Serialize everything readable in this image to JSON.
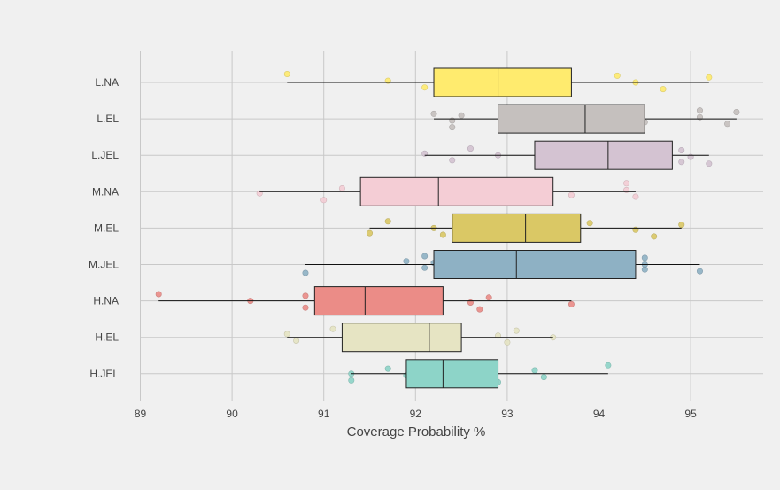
{
  "chart_data": {
    "type": "boxplot",
    "title": "",
    "xlabel": "Coverage Probability %",
    "ylabel": "",
    "xlim": [
      88.8,
      95.8
    ],
    "xticks": [
      89,
      90,
      91,
      92,
      93,
      94,
      95
    ],
    "grid": true,
    "legend": "none",
    "categories": [
      "L.NA",
      "L.EL",
      "L.JEL",
      "M.NA",
      "M.EL",
      "M.JEL",
      "H.NA",
      "H.EL",
      "H.JEL"
    ],
    "series": [
      {
        "category": "L.NA",
        "color": "#FFEB6E",
        "whisker_low": 90.6,
        "q1": 92.2,
        "median": 92.9,
        "q3": 93.7,
        "whisker_high": 95.2,
        "points": [
          90.6,
          91.7,
          92.1,
          94.2,
          94.4,
          94.7,
          95.2
        ]
      },
      {
        "category": "L.EL",
        "color": "#C5C0BE",
        "whisker_low": 92.2,
        "q1": 92.9,
        "median": 93.85,
        "q3": 94.5,
        "whisker_high": 95.5,
        "points": [
          92.2,
          92.4,
          92.4,
          92.5,
          94.5,
          95.1,
          95.1,
          95.4,
          95.5
        ]
      },
      {
        "category": "L.JEL",
        "color": "#D4C3D2",
        "whisker_low": 92.1,
        "q1": 93.3,
        "median": 94.1,
        "q3": 94.8,
        "whisker_high": 95.2,
        "points": [
          92.1,
          92.4,
          92.6,
          92.9,
          94.9,
          94.9,
          95.0,
          95.2
        ]
      },
      {
        "category": "M.NA",
        "color": "#F4CDD5",
        "whisker_low": 90.3,
        "q1": 91.4,
        "median": 92.25,
        "q3": 93.5,
        "whisker_high": 94.4,
        "points": [
          90.3,
          91.0,
          91.2,
          93.7,
          94.3,
          94.3,
          94.4
        ]
      },
      {
        "category": "M.EL",
        "color": "#DAC865",
        "whisker_low": 91.5,
        "q1": 92.4,
        "median": 93.2,
        "q3": 93.8,
        "whisker_high": 94.9,
        "points": [
          91.5,
          91.7,
          92.2,
          92.3,
          93.9,
          94.4,
          94.6,
          94.9
        ]
      },
      {
        "category": "M.JEL",
        "color": "#8EB1C4",
        "whisker_low": 90.8,
        "q1": 92.2,
        "median": 93.1,
        "q3": 94.4,
        "whisker_high": 95.1,
        "points": [
          90.8,
          91.9,
          92.1,
          92.1,
          92.2,
          94.5,
          94.5,
          94.5,
          95.1
        ]
      },
      {
        "category": "H.NA",
        "color": "#EB8C87",
        "whisker_low": 89.2,
        "q1": 90.9,
        "median": 91.45,
        "q3": 92.3,
        "whisker_high": 93.7,
        "points": [
          89.2,
          90.2,
          90.8,
          90.8,
          92.6,
          92.7,
          92.8,
          93.7
        ]
      },
      {
        "category": "H.EL",
        "color": "#E6E4C3",
        "whisker_low": 90.6,
        "q1": 91.2,
        "median": 92.15,
        "q3": 92.5,
        "whisker_high": 93.5,
        "points": [
          90.6,
          90.7,
          91.1,
          92.9,
          93.0,
          93.1,
          93.5
        ]
      },
      {
        "category": "H.JEL",
        "color": "#8DD4C8",
        "whisker_low": 91.3,
        "q1": 91.9,
        "median": 92.3,
        "q3": 92.9,
        "whisker_high": 94.1,
        "points": [
          91.3,
          91.3,
          91.7,
          91.9,
          92.9,
          93.3,
          93.4,
          94.1
        ]
      }
    ]
  }
}
